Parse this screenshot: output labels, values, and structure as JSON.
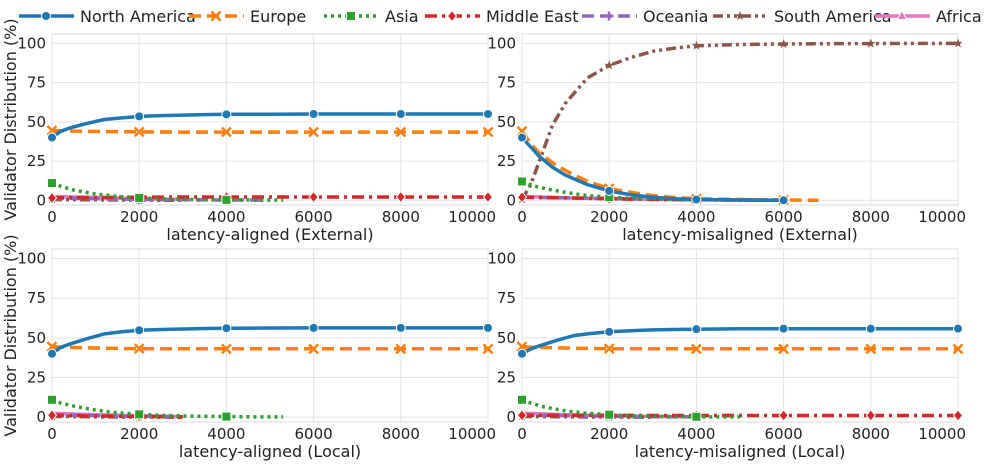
{
  "legend": [
    {
      "name": "North America",
      "color": "#1f77b4",
      "dash": "solid",
      "marker": "circle"
    },
    {
      "name": "Europe",
      "color": "#ff7f0e",
      "dash": "dashed",
      "marker": "x"
    },
    {
      "name": "Asia",
      "color": "#2ca02c",
      "dash": "dotted",
      "marker": "square"
    },
    {
      "name": "Middle East",
      "color": "#d62728",
      "dash": "dashdot",
      "marker": "diamond"
    },
    {
      "name": "Oceania",
      "color": "#9467bd",
      "dash": "dashed",
      "marker": "plus"
    },
    {
      "name": "South America",
      "color": "#8c564b",
      "dash": "dashdotdot",
      "marker": "star"
    },
    {
      "name": "Africa",
      "color": "#e377c2",
      "dash": "solid",
      "marker": "triangle"
    }
  ],
  "chart_data": [
    {
      "type": "line",
      "xlabel": "latency-aligned (External)",
      "ylabel": "Validator Distribution (%)",
      "xlim": [
        0,
        10000
      ],
      "ylim": [
        -3,
        106
      ],
      "xticks": [
        0,
        2000,
        4000,
        6000,
        8000,
        10000
      ],
      "yticks": [
        0,
        25,
        50,
        75,
        100
      ],
      "series": [
        {
          "name": "North America",
          "x": [
            0,
            200,
            400,
            800,
            1200,
            1600,
            2000,
            2500,
            3000,
            3500,
            4000,
            5000,
            6000,
            7000,
            8000,
            9000,
            10000
          ],
          "y": [
            40,
            44,
            46,
            49,
            51.5,
            52.5,
            53.5,
            54,
            54.3,
            54.6,
            54.8,
            54.9,
            55,
            55,
            55,
            55,
            55
          ]
        },
        {
          "name": "Europe",
          "x": [
            0,
            200,
            400,
            800,
            1200,
            1600,
            2000,
            3000,
            4000,
            5000,
            6000,
            8000,
            10000
          ],
          "y": [
            44.5,
            44.3,
            44.2,
            44,
            43.8,
            43.7,
            43.6,
            43.5,
            43.5,
            43.5,
            43.5,
            43.5,
            43.5
          ]
        },
        {
          "name": "Asia",
          "x": [
            0,
            200,
            500,
            1000,
            1500,
            2000,
            2500,
            3000,
            3500,
            4000,
            5000,
            5300
          ],
          "y": [
            11,
            9,
            6.5,
            4,
            2.5,
            1.5,
            1,
            0.6,
            0.4,
            0.3,
            0.2,
            0.2
          ]
        },
        {
          "name": "Middle East",
          "x": [
            0,
            1000,
            2000,
            3000,
            4000,
            5000,
            6000,
            7000,
            8000,
            9000,
            10000
          ],
          "y": [
            1.5,
            1.8,
            2,
            2.1,
            2.1,
            2.1,
            2.1,
            2.1,
            2.1,
            2.1,
            2.1
          ]
        },
        {
          "name": "Oceania",
          "x": [
            0,
            1000,
            2000,
            3000,
            4000,
            5000
          ],
          "y": [
            1.5,
            1,
            0.5,
            0.3,
            0.2,
            0.1
          ]
        },
        {
          "name": "South America",
          "x": [
            0,
            1000,
            2000,
            3000
          ],
          "y": [
            0.5,
            0.3,
            0.1,
            0
          ]
        },
        {
          "name": "Africa",
          "x": [
            0,
            1000,
            2000,
            3000
          ],
          "y": [
            2.5,
            1.8,
            1.1,
            0.6
          ]
        }
      ]
    },
    {
      "type": "line",
      "xlabel": "latency-misaligned (External)",
      "ylabel": "",
      "xlim": [
        0,
        10000
      ],
      "ylim": [
        -3,
        106
      ],
      "xticks": [
        0,
        2000,
        4000,
        6000,
        8000,
        10000
      ],
      "yticks": [
        0,
        25,
        50,
        75,
        100
      ],
      "series": [
        {
          "name": "North America",
          "x": [
            0,
            200,
            400,
            700,
            1000,
            1500,
            2000,
            2500,
            3000,
            3500,
            4000,
            5000,
            6000
          ],
          "y": [
            40,
            34,
            28,
            21,
            16,
            10,
            6,
            3.5,
            2,
            1,
            0.5,
            0.2,
            0
          ]
        },
        {
          "name": "Europe",
          "x": [
            0,
            200,
            400,
            800,
            1200,
            1600,
            2000,
            2500,
            3000,
            3500,
            4000,
            5000,
            6000,
            6800
          ],
          "y": [
            44,
            36,
            30,
            22,
            16,
            11,
            7.5,
            5,
            3,
            1.8,
            1,
            0.5,
            0.2,
            0
          ]
        },
        {
          "name": "Asia",
          "x": [
            0,
            300,
            600,
            1000,
            1500,
            2000,
            2500,
            3000,
            4000,
            5000,
            6000
          ],
          "y": [
            12,
            9,
            7,
            5,
            3,
            2,
            1.2,
            0.8,
            0.4,
            0.2,
            0.1
          ]
        },
        {
          "name": "Middle East",
          "x": [
            0,
            1000,
            2000,
            3000,
            4000,
            5000,
            6000
          ],
          "y": [
            2,
            1.5,
            1,
            0.6,
            0.3,
            0.2,
            0.1
          ]
        },
        {
          "name": "Oceania",
          "x": [
            0,
            1000,
            2000,
            3000,
            4000,
            5000,
            6000
          ],
          "y": [
            2,
            1.6,
            1.2,
            0.8,
            0.5,
            0.3,
            0.2
          ]
        },
        {
          "name": "South America",
          "x": [
            0,
            200,
            400,
            700,
            1000,
            1500,
            2000,
            2500,
            3000,
            3500,
            4000,
            5000,
            6000,
            7000,
            8000,
            9000,
            10000
          ],
          "y": [
            0.5,
            10,
            25,
            48,
            62,
            78,
            86,
            91,
            95,
            97,
            98.5,
            99.3,
            99.6,
            99.8,
            99.9,
            100,
            100
          ]
        },
        {
          "name": "Africa",
          "x": [
            0,
            1000,
            2000,
            3000,
            4000,
            5000
          ],
          "y": [
            2.5,
            1.5,
            1,
            0.5,
            0.3,
            0.1
          ]
        }
      ]
    },
    {
      "type": "line",
      "xlabel": "latency-aligned (Local)",
      "ylabel": "Validator Distribution (%)",
      "xlim": [
        0,
        10000
      ],
      "ylim": [
        -3,
        106
      ],
      "xticks": [
        0,
        2000,
        4000,
        6000,
        8000,
        10000
      ],
      "yticks": [
        0,
        25,
        50,
        75,
        100
      ],
      "series": [
        {
          "name": "North America",
          "x": [
            0,
            200,
            400,
            800,
            1200,
            1600,
            2000,
            2500,
            3000,
            3500,
            4000,
            5000,
            6000,
            7000,
            8000,
            9000,
            10000
          ],
          "y": [
            40,
            44,
            46,
            49.5,
            52.5,
            53.8,
            54.8,
            55.3,
            55.6,
            55.9,
            56.1,
            56.2,
            56.3,
            56.3,
            56.3,
            56.3,
            56.3
          ]
        },
        {
          "name": "Europe",
          "x": [
            0,
            200,
            400,
            800,
            1200,
            1600,
            2000,
            3000,
            4000,
            5000,
            6000,
            8000,
            10000
          ],
          "y": [
            44.5,
            44.2,
            44,
            43.7,
            43.5,
            43.3,
            43.2,
            43.1,
            43.1,
            43.1,
            43.1,
            43.1,
            43.1
          ]
        },
        {
          "name": "Asia",
          "x": [
            0,
            200,
            500,
            1000,
            1500,
            2000,
            2500,
            3000,
            3500,
            4000,
            4500,
            5000,
            5300
          ],
          "y": [
            11,
            9,
            7,
            4.5,
            2.8,
            1.8,
            1.2,
            0.8,
            0.6,
            0.4,
            0.3,
            0.2,
            0.2
          ]
        },
        {
          "name": "Middle East",
          "x": [
            0,
            1000,
            2000,
            3000
          ],
          "y": [
            1.2,
            0.8,
            0.5,
            0.2
          ]
        },
        {
          "name": "Oceania",
          "x": [
            0,
            1000,
            2000,
            3000
          ],
          "y": [
            1.5,
            1,
            0.6,
            0.3
          ]
        },
        {
          "name": "South America",
          "x": [
            0,
            1000,
            2000,
            3000
          ],
          "y": [
            0.5,
            0.3,
            0.1,
            0
          ]
        },
        {
          "name": "Africa",
          "x": [
            0,
            1000,
            2000,
            3000
          ],
          "y": [
            2.5,
            1.6,
            1,
            0.4
          ]
        }
      ]
    },
    {
      "type": "line",
      "xlabel": "latency-misaligned (Local)",
      "ylabel": "",
      "xlim": [
        0,
        10000
      ],
      "ylim": [
        -3,
        106
      ],
      "xticks": [
        0,
        2000,
        4000,
        6000,
        8000,
        10000
      ],
      "yticks": [
        0,
        25,
        50,
        75,
        100
      ],
      "series": [
        {
          "name": "North America",
          "x": [
            0,
            200,
            400,
            800,
            1200,
            1600,
            2000,
            2500,
            3000,
            3500,
            4000,
            5000,
            6000,
            7000,
            8000,
            9000,
            10000
          ],
          "y": [
            40,
            43,
            45,
            48.5,
            51.5,
            52.8,
            53.8,
            54.5,
            55,
            55.3,
            55.5,
            55.7,
            55.8,
            55.8,
            55.8,
            55.8,
            55.8
          ]
        },
        {
          "name": "Europe",
          "x": [
            0,
            200,
            400,
            800,
            1200,
            1600,
            2000,
            3000,
            4000,
            5000,
            6000,
            8000,
            10000
          ],
          "y": [
            44.5,
            44.2,
            44,
            43.7,
            43.5,
            43.3,
            43.2,
            43.1,
            43.1,
            43.1,
            43.1,
            43.1,
            43.1
          ]
        },
        {
          "name": "Asia",
          "x": [
            0,
            200,
            500,
            1000,
            1500,
            2000,
            2500,
            3000,
            3500,
            4000,
            4500,
            5000
          ],
          "y": [
            11,
            9,
            6.5,
            4,
            2.5,
            1.6,
            1,
            0.6,
            0.4,
            0.3,
            0.2,
            0.2
          ]
        },
        {
          "name": "Middle East",
          "x": [
            0,
            1000,
            2000,
            3000,
            4000,
            5000,
            6000,
            7000,
            8000,
            9000,
            10000
          ],
          "y": [
            1.2,
            1.2,
            1.2,
            1.1,
            1.1,
            1.1,
            1.1,
            1.1,
            1.1,
            1.1,
            1.1
          ]
        },
        {
          "name": "Oceania",
          "x": [
            0,
            1000,
            2000,
            3000,
            4000
          ],
          "y": [
            1.5,
            1,
            0.6,
            0.3,
            0.2
          ]
        },
        {
          "name": "South America",
          "x": [
            0,
            1000,
            2000,
            3000
          ],
          "y": [
            0.5,
            0.3,
            0.1,
            0
          ]
        },
        {
          "name": "Africa",
          "x": [
            0,
            1000,
            2000,
            3000,
            4000
          ],
          "y": [
            2.5,
            1.6,
            1,
            0.5,
            0.2
          ]
        }
      ]
    }
  ]
}
